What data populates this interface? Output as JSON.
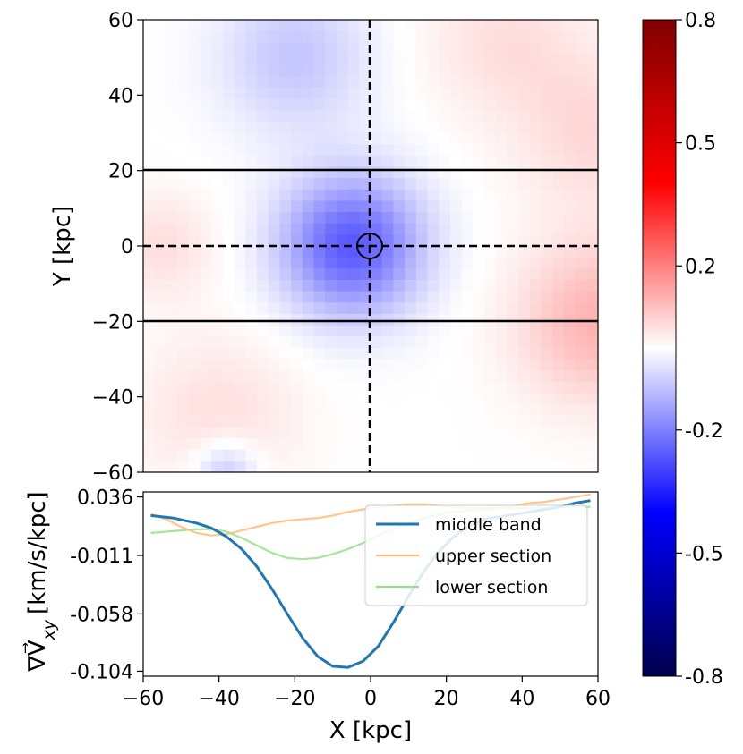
{
  "chart_data": [
    {
      "type": "heatmap",
      "xlim": [
        -60,
        60
      ],
      "ylim": [
        -60,
        60
      ],
      "ylabel": "Y [kpc]",
      "yticks": [
        "60",
        "40",
        "20",
        "0",
        "−20",
        "−40",
        "−60"
      ],
      "yticks_values": [
        60,
        40,
        20,
        0,
        -20,
        -40,
        -60
      ],
      "horizontal_lines": [
        20,
        -20
      ],
      "dashed_crosshair": {
        "x": 0,
        "y": 0
      },
      "circle_marker": {
        "x": 0,
        "y": 0
      },
      "field_description": {
        "blue_center": {
          "x": -5,
          "y": 0,
          "sigma_x": 13,
          "sigma_y": 13,
          "value": -0.26
        },
        "red_regions": [
          {
            "x": 60,
            "y": -20,
            "sigma": 15,
            "value": 0.12
          },
          {
            "x": 60,
            "y": 30,
            "sigma": 15,
            "value": 0.06
          },
          {
            "x": -55,
            "y": 0,
            "sigma": 10,
            "value": 0.05
          },
          {
            "x": -40,
            "y": -45,
            "sigma": 15,
            "value": 0.05
          },
          {
            "x": 35,
            "y": 55,
            "sigma": 15,
            "value": 0.05
          }
        ],
        "weak_blue_regions": [
          {
            "x": -20,
            "y": 50,
            "sigma": 14,
            "value": -0.09
          },
          {
            "x": -38,
            "y": -60,
            "sigma": 6,
            "value": -0.1
          }
        ]
      }
    },
    {
      "type": "line",
      "xlabel": "X [kpc]",
      "ylabel": "∇V⃗xy [km/s/kpc]",
      "ylim": [
        -0.108,
        0.04
      ],
      "xlim": [
        -60,
        60
      ],
      "yticks": [
        "0.036",
        "-0.011",
        "-0.058",
        "-0.104"
      ],
      "yticks_values": [
        0.036,
        -0.011,
        -0.058,
        -0.104
      ],
      "xticks": [
        "−60",
        "−40",
        "−20",
        "0",
        "20",
        "40",
        "60"
      ],
      "xticks_values": [
        -60,
        -40,
        -20,
        0,
        20,
        40,
        60
      ],
      "legend_position": "upper-right",
      "series": [
        {
          "name": "middle band",
          "color": "#1f77b4",
          "x": [
            -58,
            -52,
            -46,
            -42,
            -38,
            -34,
            -30,
            -26,
            -22,
            -18,
            -14,
            -10,
            -6,
            -2,
            2,
            6,
            10,
            14,
            18,
            22,
            26,
            30,
            34,
            38,
            42,
            46,
            50,
            54,
            58
          ],
          "y": [
            0.021,
            0.019,
            0.015,
            0.011,
            0.004,
            -0.006,
            -0.02,
            -0.038,
            -0.058,
            -0.077,
            -0.092,
            -0.1,
            -0.101,
            -0.096,
            -0.084,
            -0.065,
            -0.044,
            -0.024,
            -0.008,
            0.004,
            0.013,
            0.018,
            0.02,
            0.022,
            0.024,
            0.026,
            0.028,
            0.031,
            0.033
          ]
        },
        {
          "name": "upper section",
          "color": "#ffbb78",
          "x": [
            -58,
            -54,
            -50,
            -46,
            -42,
            -38,
            -34,
            -30,
            -26,
            -22,
            -18,
            -14,
            -10,
            -6,
            -2,
            2,
            6,
            10,
            14,
            18,
            22,
            26,
            30,
            34,
            38,
            42,
            46,
            50,
            54,
            58
          ],
          "y": [
            0.022,
            0.018,
            0.012,
            0.007,
            0.005,
            0.006,
            0.009,
            0.012,
            0.015,
            0.017,
            0.018,
            0.019,
            0.021,
            0.024,
            0.026,
            0.028,
            0.029,
            0.03,
            0.03,
            0.029,
            0.028,
            0.027,
            0.027,
            0.028,
            0.029,
            0.031,
            0.032,
            0.034,
            0.036,
            0.038
          ]
        },
        {
          "name": "lower section",
          "color": "#98df8a",
          "x": [
            -58,
            -54,
            -50,
            -46,
            -42,
            -38,
            -34,
            -30,
            -26,
            -22,
            -18,
            -14,
            -10,
            -6,
            -2,
            2,
            6,
            10,
            14,
            18,
            22,
            26,
            30,
            34,
            38,
            42,
            46,
            50,
            54,
            58
          ],
          "y": [
            0.007,
            0.008,
            0.009,
            0.01,
            0.01,
            0.008,
            0.003,
            -0.003,
            -0.009,
            -0.013,
            -0.014,
            -0.013,
            -0.01,
            -0.006,
            -0.001,
            0.005,
            0.01,
            0.015,
            0.019,
            0.022,
            0.024,
            0.025,
            0.026,
            0.027,
            0.027,
            0.027,
            0.027,
            0.028,
            0.028,
            0.028
          ]
        }
      ]
    },
    {
      "type": "colorbar",
      "vmin": -0.8,
      "vmax": 0.8,
      "colormap": "seismic",
      "tick_labels": [
        "0.8",
        "0.5",
        "0.2",
        "-0.2",
        "-0.5",
        "-0.8"
      ],
      "tick_values": [
        0.8,
        0.5,
        0.2,
        -0.2,
        -0.5,
        -0.8
      ]
    }
  ]
}
